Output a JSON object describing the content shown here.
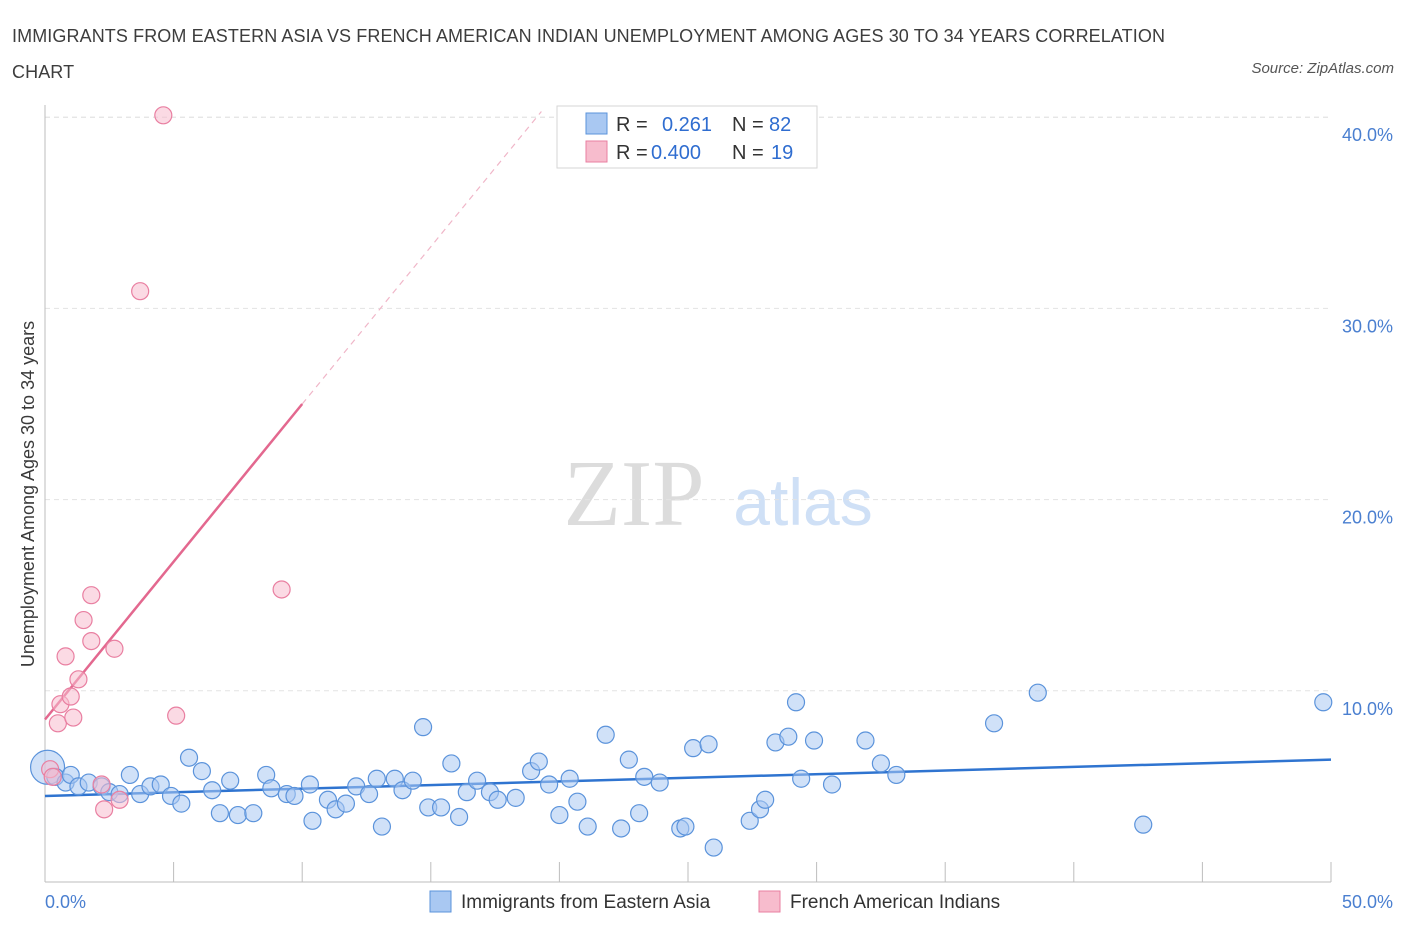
{
  "title": "IMMIGRANTS FROM EASTERN ASIA VS FRENCH AMERICAN INDIAN UNEMPLOYMENT AMONG AGES 30 TO 34 YEARS CORRELATION CHART",
  "source": "Source: ZipAtlas.com",
  "watermark": {
    "zip": "ZIP",
    "atlas": "atlas"
  },
  "legend_top": {
    "rows": [
      {
        "r_label": "R =",
        "r_value": "0.261",
        "n_label": "N =",
        "n_value": "82",
        "color": "#a9c8f2"
      },
      {
        "r_label": "R =",
        "r_value": "0.400",
        "n_label": "N =",
        "n_value": "19",
        "color": "#f7bccd"
      }
    ]
  },
  "legend_bottom": [
    "Immigrants from Eastern Asia",
    "French American Indians"
  ],
  "chart_data": {
    "type": "scatter",
    "ylabel": "Unemployment Among Ages 30 to 34 years",
    "xlim": [
      0,
      50
    ],
    "ylim": [
      0,
      40
    ],
    "x_tick_labels": [
      "0.0%",
      "50.0%"
    ],
    "y_ticks": [
      10,
      20,
      30,
      40
    ],
    "y_tick_labels": [
      "10.0%",
      "20.0%",
      "30.0%",
      "40.0%"
    ],
    "grid": true,
    "colors": {
      "blue": "#5b93db",
      "blue_fill": "#a9c8f2",
      "blue_line": "#2f74d0",
      "pink": "#e97fa1",
      "pink_fill": "#f7bccd",
      "pink_line": "#e3688f"
    },
    "series": [
      {
        "name": "Immigrants from Eastern Asia",
        "trend": {
          "x": [
            0,
            50
          ],
          "y": [
            4.5,
            6.4
          ]
        },
        "points": [
          [
            0.1,
            6.0
          ],
          [
            0.4,
            5.5
          ],
          [
            0.8,
            5.2
          ],
          [
            1.0,
            5.6
          ],
          [
            1.3,
            5.0
          ],
          [
            1.7,
            5.2
          ],
          [
            2.2,
            5.0
          ],
          [
            2.5,
            4.7
          ],
          [
            2.9,
            4.6
          ],
          [
            3.3,
            5.6
          ],
          [
            3.7,
            4.6
          ],
          [
            4.1,
            5.0
          ],
          [
            4.5,
            5.1
          ],
          [
            4.9,
            4.5
          ],
          [
            5.3,
            4.1
          ],
          [
            5.6,
            6.5
          ],
          [
            6.1,
            5.8
          ],
          [
            6.5,
            4.8
          ],
          [
            6.8,
            3.6
          ],
          [
            7.2,
            5.3
          ],
          [
            7.5,
            3.5
          ],
          [
            8.1,
            3.6
          ],
          [
            8.6,
            5.6
          ],
          [
            8.8,
            4.9
          ],
          [
            9.4,
            4.6
          ],
          [
            9.7,
            4.5
          ],
          [
            10.3,
            5.1
          ],
          [
            10.4,
            3.2
          ],
          [
            11.0,
            4.3
          ],
          [
            11.3,
            3.8
          ],
          [
            11.7,
            4.1
          ],
          [
            12.1,
            5.0
          ],
          [
            12.6,
            4.6
          ],
          [
            12.9,
            5.4
          ],
          [
            13.1,
            2.9
          ],
          [
            13.6,
            5.4
          ],
          [
            13.9,
            4.8
          ],
          [
            14.3,
            5.3
          ],
          [
            14.7,
            8.1
          ],
          [
            14.9,
            3.9
          ],
          [
            15.4,
            3.9
          ],
          [
            15.8,
            6.2
          ],
          [
            16.1,
            3.4
          ],
          [
            16.4,
            4.7
          ],
          [
            16.8,
            5.3
          ],
          [
            17.3,
            4.7
          ],
          [
            17.6,
            4.3
          ],
          [
            18.3,
            4.4
          ],
          [
            18.9,
            5.8
          ],
          [
            19.2,
            6.3
          ],
          [
            19.6,
            5.1
          ],
          [
            20.0,
            3.5
          ],
          [
            20.4,
            5.4
          ],
          [
            20.7,
            4.2
          ],
          [
            21.1,
            2.9
          ],
          [
            21.8,
            7.7
          ],
          [
            22.4,
            2.8
          ],
          [
            22.7,
            6.4
          ],
          [
            23.1,
            3.6
          ],
          [
            23.3,
            5.5
          ],
          [
            23.9,
            5.2
          ],
          [
            24.7,
            2.8
          ],
          [
            24.9,
            2.9
          ],
          [
            25.2,
            7.0
          ],
          [
            25.8,
            7.2
          ],
          [
            26.0,
            1.8
          ],
          [
            27.4,
            3.2
          ],
          [
            27.8,
            3.8
          ],
          [
            28.0,
            4.3
          ],
          [
            28.4,
            7.3
          ],
          [
            28.9,
            7.6
          ],
          [
            29.2,
            9.4
          ],
          [
            29.4,
            5.4
          ],
          [
            29.9,
            7.4
          ],
          [
            30.6,
            5.1
          ],
          [
            31.9,
            7.4
          ],
          [
            32.5,
            6.2
          ],
          [
            33.1,
            5.6
          ],
          [
            36.9,
            8.3
          ],
          [
            38.6,
            9.9
          ],
          [
            42.7,
            3.0
          ],
          [
            49.7,
            9.4
          ]
        ]
      },
      {
        "name": "French American Indians",
        "trend": {
          "x": [
            0,
            10
          ],
          "y": [
            8.5,
            25.0
          ]
        },
        "trend_ext": {
          "x": [
            10,
            19.3
          ],
          "y": [
            25.0,
            40.3
          ]
        },
        "points": [
          [
            0.2,
            5.9
          ],
          [
            0.3,
            5.5
          ],
          [
            0.5,
            8.3
          ],
          [
            0.6,
            9.3
          ],
          [
            0.8,
            11.8
          ],
          [
            1.0,
            9.7
          ],
          [
            1.1,
            8.6
          ],
          [
            1.3,
            10.6
          ],
          [
            1.5,
            13.7
          ],
          [
            1.8,
            12.6
          ],
          [
            1.8,
            15.0
          ],
          [
            2.2,
            5.1
          ],
          [
            2.3,
            3.8
          ],
          [
            2.7,
            12.2
          ],
          [
            2.9,
            4.3
          ],
          [
            3.7,
            30.9
          ],
          [
            4.6,
            40.1
          ],
          [
            5.1,
            8.7
          ],
          [
            9.2,
            15.3
          ]
        ]
      }
    ]
  }
}
